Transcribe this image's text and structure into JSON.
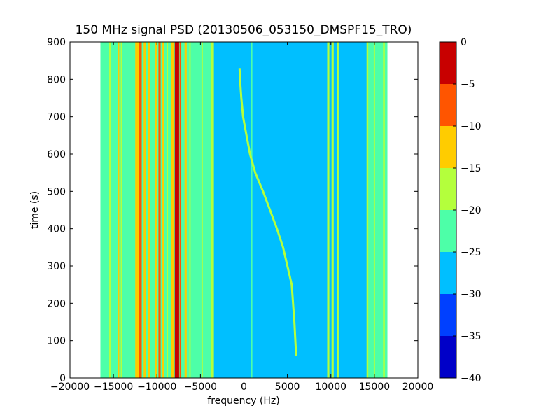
{
  "chart_data": {
    "type": "heatmap",
    "title": "150 MHz signal PSD (20130506_053150_DMSPF15_TRO)",
    "xlabel": "frequency (Hz)",
    "ylabel": "time (s)",
    "xlim": [
      -20000,
      20000
    ],
    "ylim": [
      0,
      900
    ],
    "xticks": [
      -20000,
      -15000,
      -10000,
      -5000,
      0,
      5000,
      10000,
      15000,
      20000
    ],
    "xtick_labels": [
      "−20000",
      "−15000",
      "−10000",
      "−5000",
      "0",
      "5000",
      "10000",
      "15000",
      "20000"
    ],
    "yticks": [
      0,
      100,
      200,
      300,
      400,
      500,
      600,
      700,
      800,
      900
    ],
    "ytick_labels": [
      "0",
      "100",
      "200",
      "300",
      "400",
      "500",
      "600",
      "700",
      "800",
      "900"
    ],
    "data_x_range": [
      -16500,
      16500
    ],
    "background_level": -27.5,
    "band_regions": [
      {
        "x0": -16500,
        "x1": -3500,
        "level": -22.5
      },
      {
        "x0": 14200,
        "x1": 16500,
        "level": -22.5
      }
    ],
    "vertical_lines": [
      {
        "x": -15400,
        "w": 180,
        "level": -17.5
      },
      {
        "x": -14400,
        "w": 150,
        "level": -12.5
      },
      {
        "x": -14100,
        "w": 120,
        "level": -17.5
      },
      {
        "x": -12300,
        "w": 400,
        "level": -12.5
      },
      {
        "x": -11900,
        "w": 300,
        "level": -7.5
      },
      {
        "x": -11400,
        "w": 250,
        "level": -12.5
      },
      {
        "x": -10900,
        "w": 200,
        "level": -12.5
      },
      {
        "x": -10100,
        "w": 250,
        "level": -12.5
      },
      {
        "x": -9700,
        "w": 250,
        "level": -7.5
      },
      {
        "x": -9300,
        "w": 200,
        "level": -12.5
      },
      {
        "x": -8800,
        "w": 150,
        "level": -17.5
      },
      {
        "x": -8200,
        "w": 300,
        "level": -12.5
      },
      {
        "x": -7700,
        "w": 500,
        "level": -2.5
      },
      {
        "x": -7300,
        "w": 200,
        "level": -7.5
      },
      {
        "x": -6700,
        "w": 250,
        "level": -12.5
      },
      {
        "x": -6200,
        "w": 150,
        "level": -17.5
      },
      {
        "x": -4800,
        "w": 150,
        "level": -17.5
      },
      {
        "x": -3600,
        "w": 300,
        "level": -17.5
      },
      {
        "x": 900,
        "w": 150,
        "level": -22.5
      },
      {
        "x": 9700,
        "w": 250,
        "level": -17.5
      },
      {
        "x": 10200,
        "w": 250,
        "level": -17.5
      },
      {
        "x": 10800,
        "w": 200,
        "level": -17.5
      },
      {
        "x": 14200,
        "w": 200,
        "level": -17.5
      },
      {
        "x": 15000,
        "w": 150,
        "level": -17.5
      },
      {
        "x": 16100,
        "w": 200,
        "level": -17.5
      }
    ],
    "drifting_signal": [
      {
        "t": 60,
        "f": 6000
      },
      {
        "t": 150,
        "f": 5800
      },
      {
        "t": 250,
        "f": 5500
      },
      {
        "t": 300,
        "f": 5000
      },
      {
        "t": 350,
        "f": 4500
      },
      {
        "t": 400,
        "f": 3800
      },
      {
        "t": 450,
        "f": 3000
      },
      {
        "t": 500,
        "f": 2200
      },
      {
        "t": 550,
        "f": 1300
      },
      {
        "t": 600,
        "f": 700
      },
      {
        "t": 650,
        "f": 300
      },
      {
        "t": 700,
        "f": -100
      },
      {
        "t": 750,
        "f": -300
      },
      {
        "t": 800,
        "f": -450
      },
      {
        "t": 830,
        "f": -500
      }
    ],
    "colorbar": {
      "min": -40,
      "max": 0,
      "boundaries": [
        -40,
        -35,
        -30,
        -25,
        -20,
        -15,
        -10,
        -5,
        0
      ],
      "colors": [
        "#0000c8",
        "#0040ff",
        "#00bfff",
        "#4dffa8",
        "#b4ff3c",
        "#ffcc00",
        "#ff5500",
        "#c80000"
      ],
      "tick_labels": [
        "−40",
        "−35",
        "−30",
        "−25",
        "−20",
        "−15",
        "−10",
        "−5",
        "0"
      ]
    },
    "grid": false,
    "legend": "none"
  }
}
